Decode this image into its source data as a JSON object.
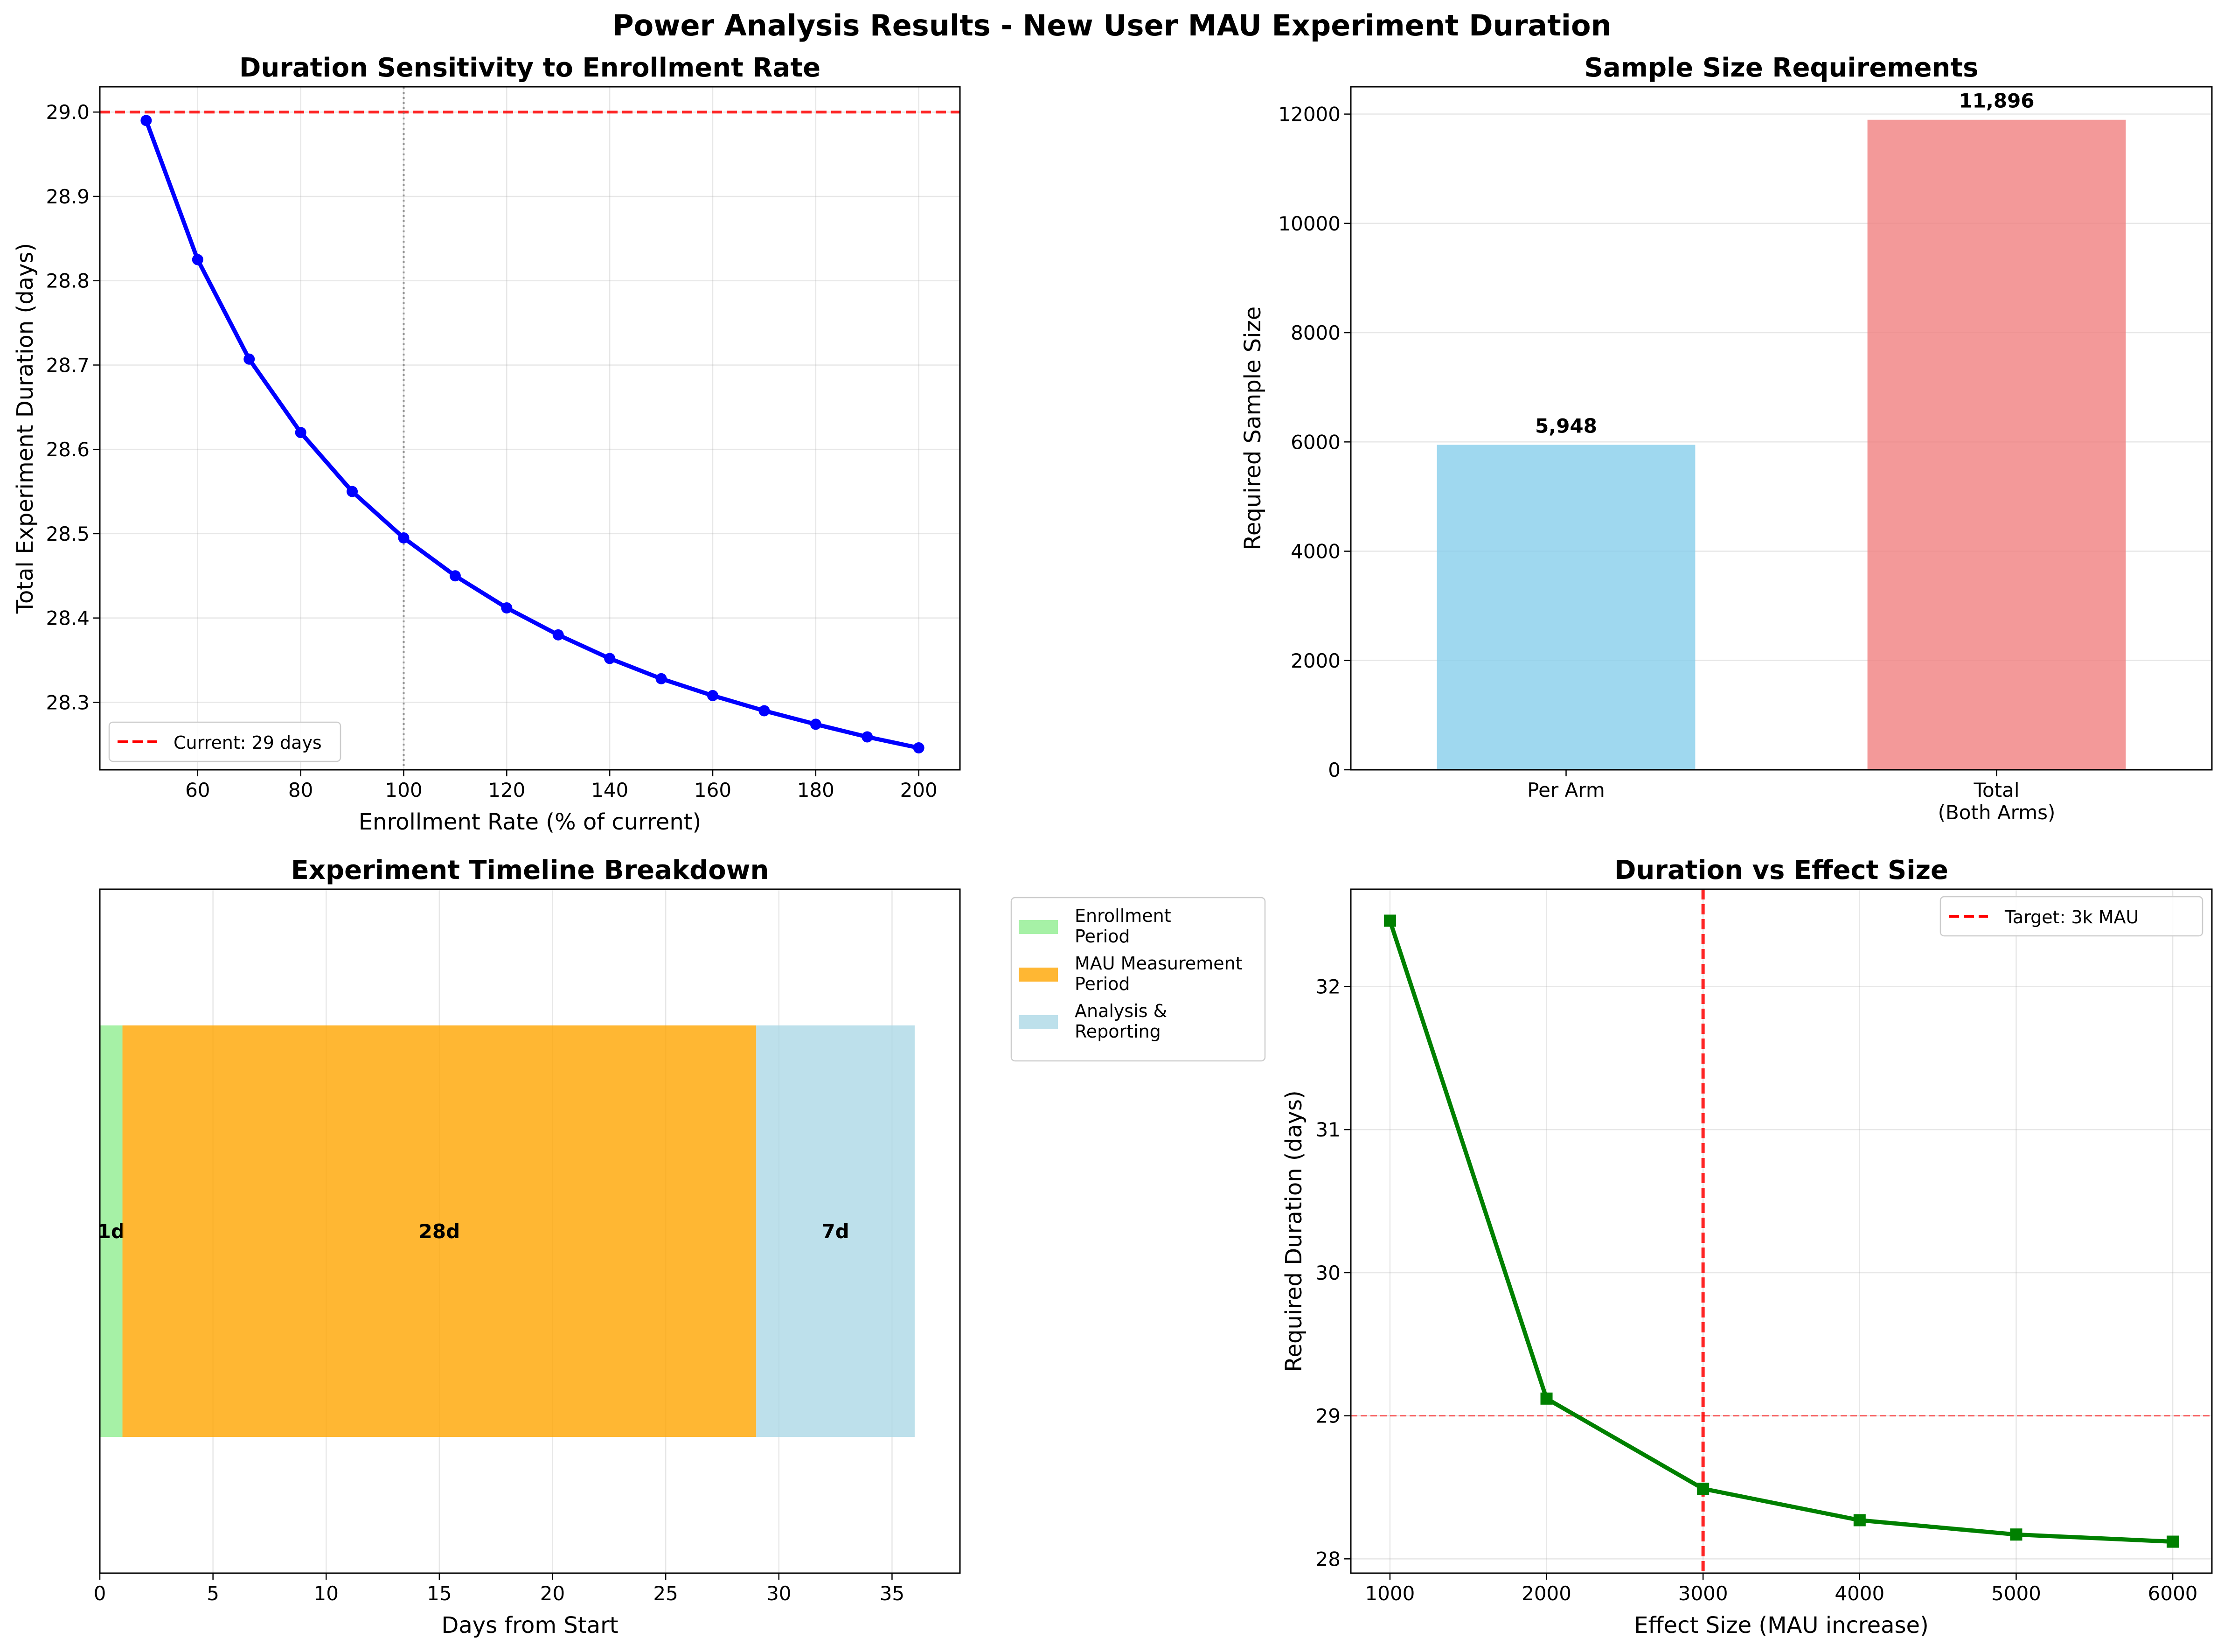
{
  "suptitle": "Power Analysis Results - New User MAU Experiment Duration",
  "chart_data": [
    {
      "type": "line",
      "title": "Duration Sensitivity to Enrollment Rate",
      "xlabel": "Enrollment Rate (% of current)",
      "ylabel": "Total Experiment Duration (days)",
      "x": [
        50,
        60,
        70,
        80,
        90,
        100,
        110,
        120,
        130,
        140,
        150,
        160,
        170,
        180,
        190,
        200
      ],
      "series": [
        {
          "values": [
            28.99,
            28.825,
            28.707,
            28.62,
            28.55,
            28.495,
            28.45,
            28.412,
            28.38,
            28.352,
            28.328,
            28.308,
            28.29,
            28.274,
            28.259,
            28.246
          ],
          "color": "#0000ff"
        }
      ],
      "reference_lines": [
        {
          "axis": "y",
          "value": 29.0,
          "label": "Current: 29 days",
          "style": "dashed",
          "color": "#ff0000"
        },
        {
          "axis": "x",
          "value": 100,
          "style": "dotted",
          "color": "#808080"
        }
      ],
      "xlim": [
        41,
        208
      ],
      "ylim": [
        28.22,
        29.03
      ],
      "xticks": [
        60,
        80,
        100,
        120,
        140,
        160,
        180,
        200
      ],
      "yticks": [
        28.3,
        28.4,
        28.5,
        28.6,
        28.7,
        28.8,
        28.9,
        29.0
      ],
      "ytick_labels": [
        "28.3",
        "28.4",
        "28.5",
        "28.6",
        "28.7",
        "28.8",
        "28.9",
        "29.0"
      ],
      "grid": true,
      "legend": "lower-left"
    },
    {
      "type": "bar",
      "title": "Sample Size Requirements",
      "ylabel": "Required Sample Size",
      "categories": [
        "Per Arm",
        "Total (Both Arms)"
      ],
      "category_lines": [
        [
          "Per Arm"
        ],
        [
          "Total",
          "(Both Arms)"
        ]
      ],
      "values": [
        5948,
        11896
      ],
      "value_labels": [
        "5,948",
        "11,896"
      ],
      "colors": [
        "#87ceeb",
        "#f08080"
      ],
      "ylim": [
        0,
        12500
      ],
      "yticks": [
        0,
        2000,
        4000,
        6000,
        8000,
        10000,
        12000
      ],
      "grid": true
    },
    {
      "type": "bar",
      "orientation": "horizontal-stacked",
      "title": "Experiment Timeline Breakdown",
      "xlabel": "Days from Start",
      "segments": [
        {
          "name": "Enrollment Period",
          "name_lines": [
            "Enrollment",
            "Period"
          ],
          "start": 0,
          "duration": 1,
          "label": "1d",
          "color": "#90ee90"
        },
        {
          "name": "MAU Measurement Period",
          "name_lines": [
            "MAU Measurement",
            "Period"
          ],
          "start": 1,
          "duration": 28,
          "label": "28d",
          "color": "#ffa500"
        },
        {
          "name": "Analysis & Reporting",
          "name_lines": [
            "Analysis &",
            "Reporting"
          ],
          "start": 29,
          "duration": 7,
          "label": "7d",
          "color": "#add8e6"
        }
      ],
      "xlim": [
        0,
        38
      ],
      "xticks": [
        0,
        5,
        10,
        15,
        20,
        25,
        30,
        35
      ],
      "grid": true,
      "legend": "outside-upper-right"
    },
    {
      "type": "line",
      "title": "Duration vs Effect Size",
      "xlabel": "Effect Size (MAU increase)",
      "ylabel": "Required Duration (days)",
      "x": [
        1000,
        2000,
        3000,
        4000,
        5000,
        6000
      ],
      "series": [
        {
          "values": [
            32.46,
            29.12,
            28.49,
            28.27,
            28.17,
            28.12
          ],
          "color": "#008000",
          "marker": "square"
        }
      ],
      "reference_lines": [
        {
          "axis": "x",
          "value": 3000,
          "label": "Target: 3k MAU",
          "style": "dashed",
          "color": "#ff0000"
        },
        {
          "axis": "y",
          "value": 29,
          "style": "dashed-thin",
          "color": "#ff0000"
        }
      ],
      "xlim": [
        750,
        6250
      ],
      "ylim": [
        27.9,
        32.68
      ],
      "xticks": [
        1000,
        2000,
        3000,
        4000,
        5000,
        6000
      ],
      "yticks": [
        28,
        29,
        30,
        31,
        32
      ],
      "grid": true,
      "legend": "upper-right"
    }
  ]
}
